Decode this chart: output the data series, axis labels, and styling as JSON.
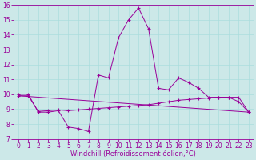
{
  "x_all": [
    0,
    1,
    2,
    3,
    4,
    5,
    6,
    7,
    8,
    9,
    10,
    11,
    12,
    13,
    14,
    15,
    16,
    17,
    18,
    19,
    20,
    21,
    22,
    23
  ],
  "line1_y": [
    10.0,
    10.0,
    8.8,
    8.8,
    8.9,
    7.8,
    7.7,
    7.5,
    11.3,
    11.1,
    13.8,
    15.0,
    15.8,
    14.4,
    10.4,
    10.3,
    11.1,
    10.8,
    10.4,
    9.8,
    9.8,
    9.8,
    9.5,
    8.8
  ],
  "line2_x": [
    0,
    1,
    2,
    3,
    4,
    5,
    6,
    7,
    8,
    9,
    10,
    11,
    12,
    13,
    14,
    15,
    16,
    17,
    18,
    19,
    20,
    21,
    22,
    23
  ],
  "line2_y": [
    9.9,
    9.9,
    8.85,
    8.9,
    8.95,
    8.9,
    8.95,
    9.0,
    9.05,
    9.1,
    9.15,
    9.2,
    9.25,
    9.3,
    9.4,
    9.5,
    9.6,
    9.65,
    9.7,
    9.75,
    9.8,
    9.8,
    9.8,
    8.8
  ],
  "line3_x": [
    0,
    23
  ],
  "line3_y": [
    9.9,
    8.8
  ],
  "bg_color": "#cce8e8",
  "line_color": "#990099",
  "grid_color": "#aadddd",
  "xlabel": "Windchill (Refroidissement éolien,°C)",
  "xlim": [
    -0.5,
    23.5
  ],
  "ylim": [
    7,
    16
  ],
  "xticks": [
    0,
    1,
    2,
    3,
    4,
    5,
    6,
    7,
    8,
    9,
    10,
    11,
    12,
    13,
    14,
    15,
    16,
    17,
    18,
    19,
    20,
    21,
    22,
    23
  ],
  "yticks": [
    7,
    8,
    9,
    10,
    11,
    12,
    13,
    14,
    15,
    16
  ],
  "xlabel_fontsize": 6,
  "tick_fontsize": 5.5
}
